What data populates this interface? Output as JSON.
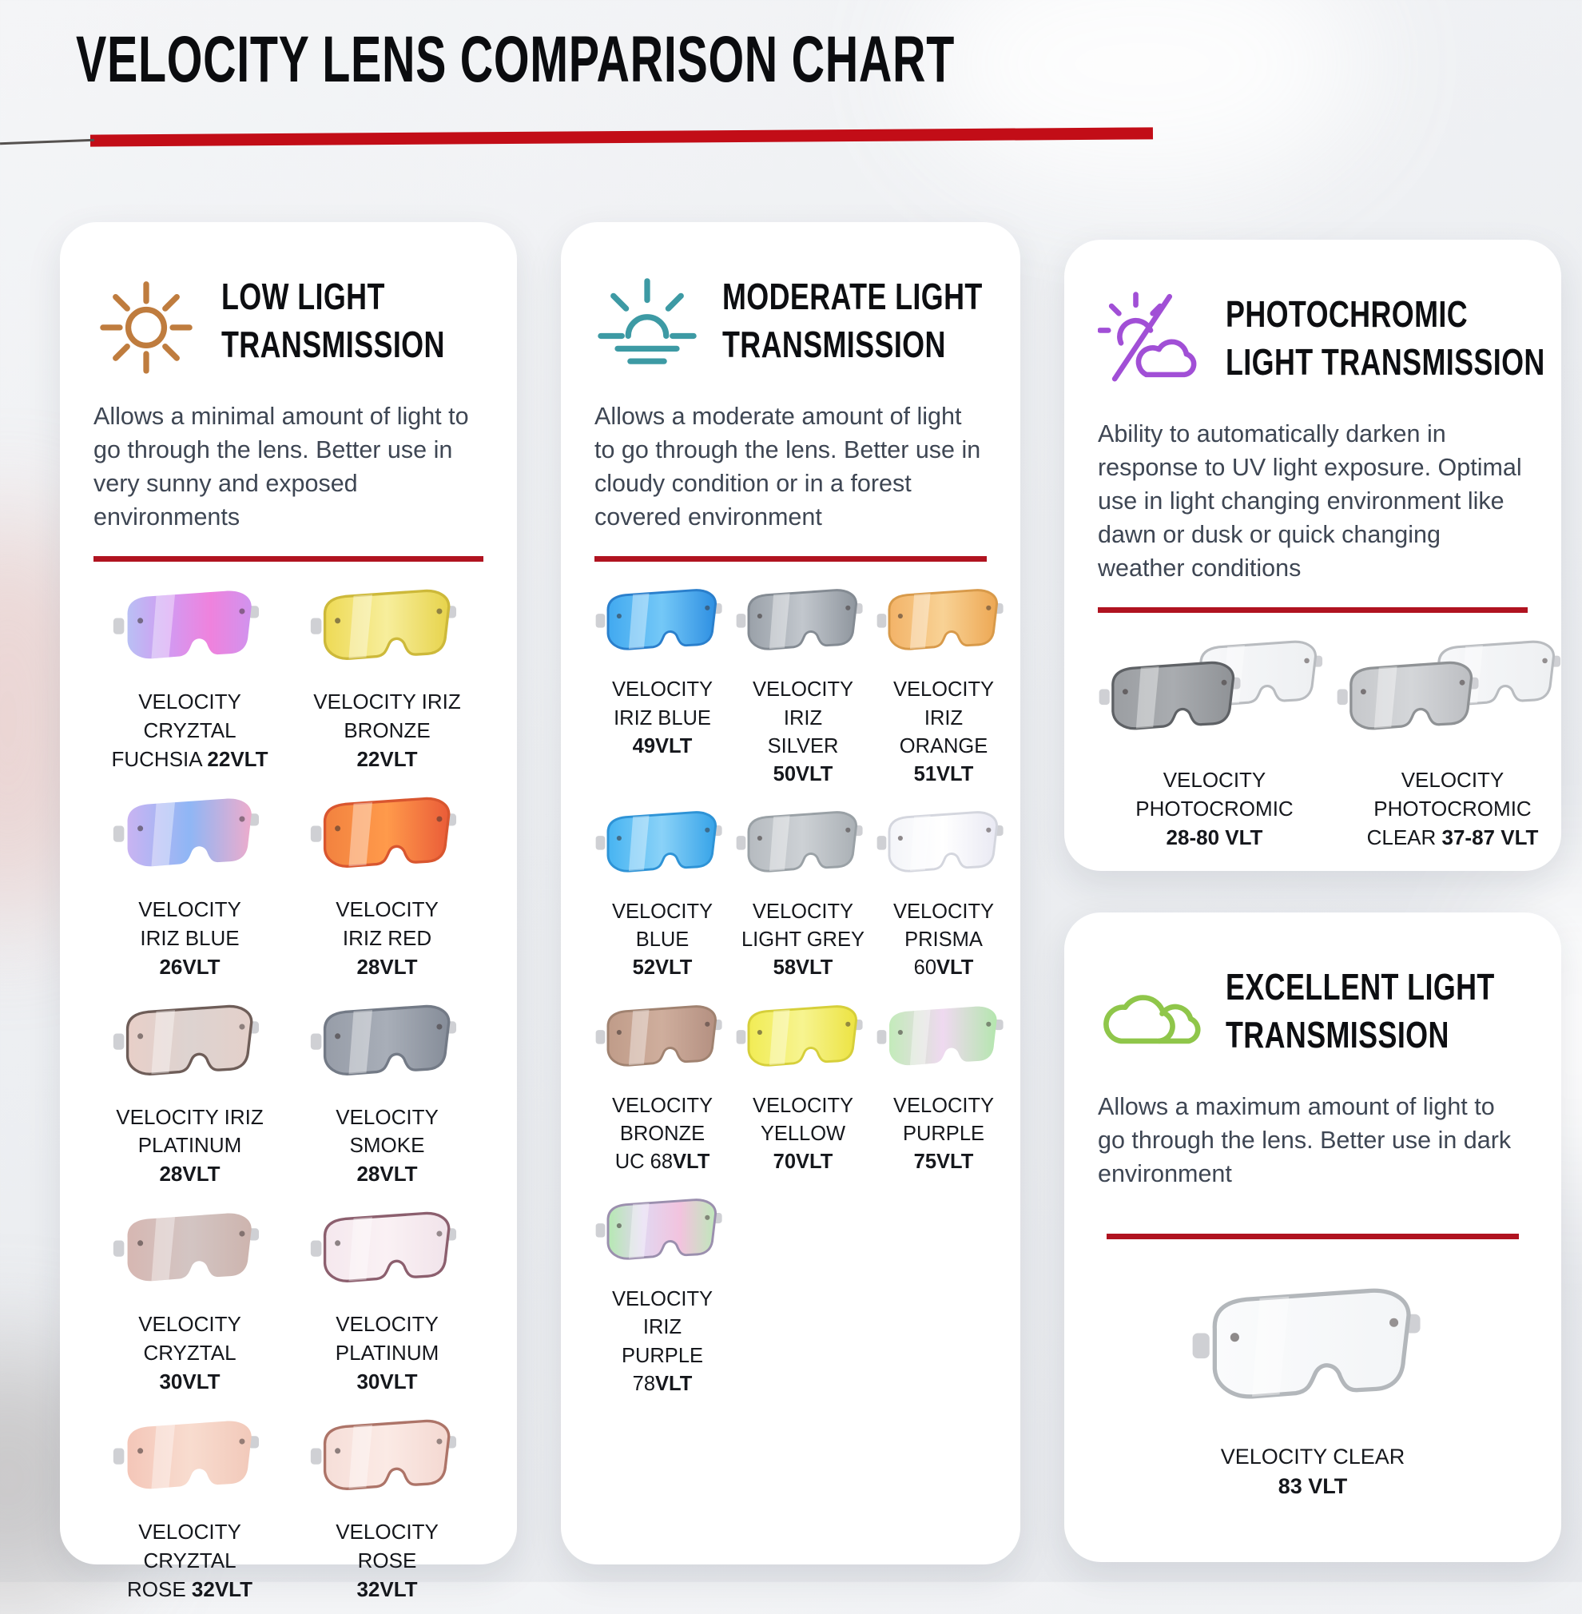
{
  "page": {
    "title": "VELOCITY LENS COMPARISON CHART"
  },
  "colors": {
    "accent_red": "#c20d17",
    "divider_red": "#b01320",
    "card_background": "#ffffff",
    "page_background": "#edeff2",
    "heading_text": "#0d0e11",
    "body_text": "#3e4653",
    "label_text": "#15171c"
  },
  "sections": [
    {
      "id": "low-light",
      "icon": "sun-icon",
      "icon_color": "#bf7c3e",
      "title_lines": [
        "LOW LIGHT",
        "TRANSMISSION"
      ],
      "description": "Allows a minimal amount of light to go through the lens. Better use in very sunny and exposed environments",
      "grid_columns": 2,
      "lens_width": 196,
      "lenses": [
        {
          "lines": [
            "VELOCITY",
            "CRYZTAL",
            "FUCHSIA **22VLT**"
          ],
          "vlt": "22",
          "fill": [
            "#b9c0f4",
            "#d29af2",
            "#ef82dd",
            "#d093ee"
          ],
          "rim": null
        },
        {
          "lines": [
            "VELOCITY IRIZ",
            "BRONZE",
            "**22VLT**"
          ],
          "vlt": "22",
          "fill": [
            "#eeda55",
            "#f7ee9c",
            "#e7d34b"
          ],
          "rim": "#cdb93a"
        },
        {
          "lines": [
            "VELOCITY",
            "IRIZ BLUE",
            "**26VLT**"
          ],
          "vlt": "26",
          "fill": [
            "#c9b4f2",
            "#8fb6f5",
            "#edaccc"
          ],
          "rim": null
        },
        {
          "lines": [
            "VELOCITY",
            "IRIZ RED",
            "**28VLT**"
          ],
          "vlt": "28",
          "fill": [
            "#f2823f",
            "#ff9a4b",
            "#ea5c38"
          ],
          "rim": "#d9562f"
        },
        {
          "lines": [
            "VELOCITY IRIZ",
            "PLATINUM",
            "**28VLT**"
          ],
          "vlt": "28",
          "fill": [
            "#e8cfc8",
            "#ddd3d0",
            "#e4d0ca"
          ],
          "rim": "#6e5d58"
        },
        {
          "lines": [
            "VELOCITY",
            "SMOKE",
            "**28VLT**"
          ],
          "vlt": "28",
          "fill": [
            "#979da8",
            "#a8aeb8",
            "#868d99"
          ],
          "rim": "#737a86"
        },
        {
          "lines": [
            "VELOCITY",
            "CRYZTAL",
            "**30VLT**"
          ],
          "vlt": "30",
          "fill": [
            "#d6b7b2",
            "#d3c5c3",
            "#cdb4ae"
          ],
          "rim": null
        },
        {
          "lines": [
            "VELOCITY",
            "PLATINUM",
            "**30VLT**"
          ],
          "vlt": "30",
          "fill": [
            "#f5e8ee",
            "#faf1f4",
            "#f1e3ea"
          ],
          "rim": "#8c5f6e"
        },
        {
          "lines": [
            "VELOCITY",
            "CRYZTAL",
            "ROSE **32VLT**"
          ],
          "vlt": "32",
          "fill": [
            "#f4c6b8",
            "#f8dccf",
            "#f2c9ba"
          ],
          "rim": null
        },
        {
          "lines": [
            "VELOCITY",
            "ROSE",
            "**32VLT**"
          ],
          "vlt": "32",
          "fill": [
            "#f6ded8",
            "#fbeae5",
            "#f4d8d1"
          ],
          "rim": "#ad7468"
        }
      ]
    },
    {
      "id": "moderate-light",
      "icon": "sunrise-icon",
      "icon_color": "#3d9aa4",
      "title_lines": [
        "MODERATE LIGHT",
        "TRANSMISSION"
      ],
      "description": "Allows a moderate amount of light to go through the lens. Better use in cloudy condition or in a forest covered environment",
      "grid_columns": 3,
      "lens_width": 170,
      "lenses": [
        {
          "lines": [
            "VELOCITY",
            "IRIZ BLUE",
            "**49VLT**"
          ],
          "vlt": "49",
          "fill": [
            "#41a9f0",
            "#74c8f7",
            "#2e8fe2"
          ],
          "rim": "#2a7fcc"
        },
        {
          "lines": [
            "VELOCITY",
            "IRIZ",
            "SILVER",
            "**50VLT**"
          ],
          "vlt": "50",
          "fill": [
            "#9aa1a9",
            "#c2c7cd",
            "#8f969e"
          ],
          "rim": "#848b93"
        },
        {
          "lines": [
            "VELOCITY",
            "IRIZ",
            "ORANGE",
            "**51VLT**"
          ],
          "vlt": "51",
          "fill": [
            "#f3b368",
            "#f8d295",
            "#eda753"
          ],
          "rim": "#d89a4a"
        },
        {
          "lines": [
            "VELOCITY",
            "BLUE",
            "**52VLT**"
          ],
          "vlt": "52",
          "fill": [
            "#47b4f2",
            "#8ad2f8",
            "#36a3e8"
          ],
          "rim": "#2e93d6"
        },
        {
          "lines": [
            "VELOCITY",
            "LIGHT GREY",
            "**58VLT**"
          ],
          "vlt": "58",
          "fill": [
            "#b6bbc0",
            "#cdd1d5",
            "#aab0b5"
          ],
          "rim": "#9aa1a6"
        },
        {
          "lines": [
            "VELOCITY",
            "PRISMA",
            "60**VLT**"
          ],
          "vlt": "60",
          "fill": [
            "#f4f5f9",
            "#ffffff",
            "#e9e9f3"
          ],
          "rim": "#d4d6de"
        },
        {
          "lines": [
            "VELOCITY",
            "BRONZE",
            "UC 68**VLT**"
          ],
          "vlt": "68",
          "fill": [
            "#c09c89",
            "#cfae9d",
            "#b49081"
          ],
          "rim": "#a08270"
        },
        {
          "lines": [
            "VELOCITY",
            "YELLOW",
            "**70VLT**"
          ],
          "vlt": "70",
          "fill": [
            "#f1ec55",
            "#f7f490",
            "#ece342"
          ],
          "rim": "#d6cf3a"
        },
        {
          "lines": [
            "VELOCITY",
            "PURPLE",
            "**75VLT**"
          ],
          "vlt": "75",
          "fill": [
            "#c3ebba",
            "#efd9f0",
            "#b4e6ae"
          ],
          "rim": null
        },
        {
          "lines": [
            "VELOCITY",
            "IRIZ",
            "PURPLE",
            "78**VLT**"
          ],
          "vlt": "78",
          "fill": [
            "#b5e9b2",
            "#e2d6f0",
            "#f2c3de",
            "#bfe8bb"
          ],
          "rim": "#9b8fae"
        }
      ]
    },
    {
      "id": "photochromic",
      "icon": "sun-cloud-slash-icon",
      "icon_color": "#a14fd6",
      "title_lines": [
        "PHOTOCHROMIC",
        "LIGHT TRANSMISSION"
      ],
      "description": "Ability to automatically darken in response to UV light exposure. Optimal use in light changing environment like dawn or dusk or quick changing weather conditions",
      "grid_columns": 2,
      "lens_width": 190,
      "lenses": [
        {
          "lines": [
            "VELOCITY",
            "PHOTOCROMIC",
            "**28-80 VLT**"
          ],
          "vlt": "28-80",
          "pair": true,
          "fill": [
            "#9b9ea2",
            "#a9acb0",
            "#8f9296"
          ],
          "rim": "#5e6165",
          "back_fill": [
            "#f7f8fa",
            "#eef0f2"
          ],
          "back_rim": "#b9bcc0"
        },
        {
          "lines": [
            "VELOCITY",
            "PHOTOCROMIC",
            "CLEAR **37-87 VLT**"
          ],
          "vlt": "37-87",
          "pair": true,
          "fill": [
            "#c6c8cb",
            "#d4d6d9",
            "#bcbec2"
          ],
          "rim": "#8f9295",
          "back_fill": [
            "#f7f8fa",
            "#eef0f2"
          ],
          "back_rim": "#b9bcc0"
        }
      ]
    },
    {
      "id": "excellent-light",
      "icon": "clouds-icon",
      "icon_color": "#8fc64a",
      "title_lines": [
        "EXCELLENT LIGHT",
        "TRANSMISSION"
      ],
      "description": "Allows a maximum amount of light to go through the lens. Better use in dark environment",
      "grid_columns": 1,
      "lens_width": 306,
      "lenses": [
        {
          "lines": [
            "VELOCITY CLEAR",
            "**83 VLT**"
          ],
          "vlt": "83",
          "fill": [
            "#fafbfc",
            "#f3f5f7"
          ],
          "rim": "#b3b7bb"
        }
      ]
    }
  ]
}
